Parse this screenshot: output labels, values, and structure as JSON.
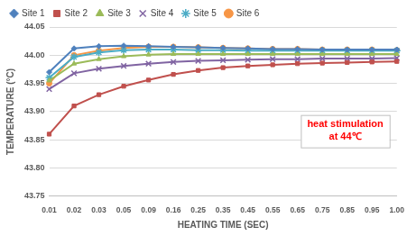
{
  "chart_data": {
    "type": "line",
    "x_label": "HEATING TIME (SEC)",
    "y_label": "TEMPERATURE (°C)",
    "categories": [
      "0.01",
      "0.02",
      "0.03",
      "0.05",
      "0.09",
      "0.16",
      "0.25",
      "0.35",
      "0.45",
      "0.55",
      "0.65",
      "0.75",
      "0.85",
      "0.95",
      "1.00"
    ],
    "series": [
      {
        "name": "Site 1",
        "color": "#4f81bd",
        "marker": "diamond",
        "values": [
          43.97,
          44.012,
          44.016,
          44.017,
          44.016,
          44.015,
          44.014,
          44.013,
          44.012,
          44.011,
          44.011,
          44.01,
          44.01,
          44.01,
          44.01
        ]
      },
      {
        "name": "Site 2",
        "color": "#c0504d",
        "marker": "square",
        "values": [
          43.86,
          43.91,
          43.93,
          43.945,
          43.956,
          43.966,
          43.973,
          43.978,
          43.981,
          43.983,
          43.985,
          43.986,
          43.987,
          43.988,
          43.989
        ]
      },
      {
        "name": "Site 3",
        "color": "#9bbb59",
        "marker": "triangle",
        "values": [
          43.955,
          43.985,
          43.993,
          43.998,
          44.001,
          44.002,
          44.002,
          44.002,
          44.002,
          44.002,
          44.002,
          44.002,
          44.002,
          44.002,
          44.002
        ]
      },
      {
        "name": "Site 4",
        "color": "#8064a2",
        "marker": "cross",
        "values": [
          43.94,
          43.968,
          43.976,
          43.981,
          43.985,
          43.988,
          43.99,
          43.991,
          43.992,
          43.993,
          43.993,
          43.994,
          43.994,
          43.994,
          43.995
        ]
      },
      {
        "name": "Site 5",
        "color": "#4bacc6",
        "marker": "star",
        "values": [
          43.96,
          43.997,
          44.005,
          44.009,
          44.01,
          44.01,
          44.009,
          44.009,
          44.008,
          44.008,
          44.008,
          44.008,
          44.008,
          44.008,
          44.008
        ]
      },
      {
        "name": "Site 6",
        "color": "#f79646",
        "marker": "circle",
        "values": [
          43.95,
          44.0,
          44.008,
          44.013,
          44.015,
          44.015,
          44.014,
          44.013,
          44.012,
          44.011,
          44.011,
          44.01,
          44.01,
          44.01,
          44.009
        ]
      }
    ],
    "ylim": [
      43.75,
      44.05
    ],
    "yticks": [
      43.75,
      {
        "value": 43.8,
        "label": "43.80"
      },
      43.85,
      {
        "value": 43.9,
        "label": "43.90"
      },
      43.95,
      {
        "value": 44.0,
        "label": "44.00"
      },
      44.05
    ],
    "grid": true,
    "legend": "top",
    "annotations": [
      {
        "text": [
          "heat stimulation",
          "at 44℃"
        ],
        "color": "#ff0000"
      }
    ]
  }
}
